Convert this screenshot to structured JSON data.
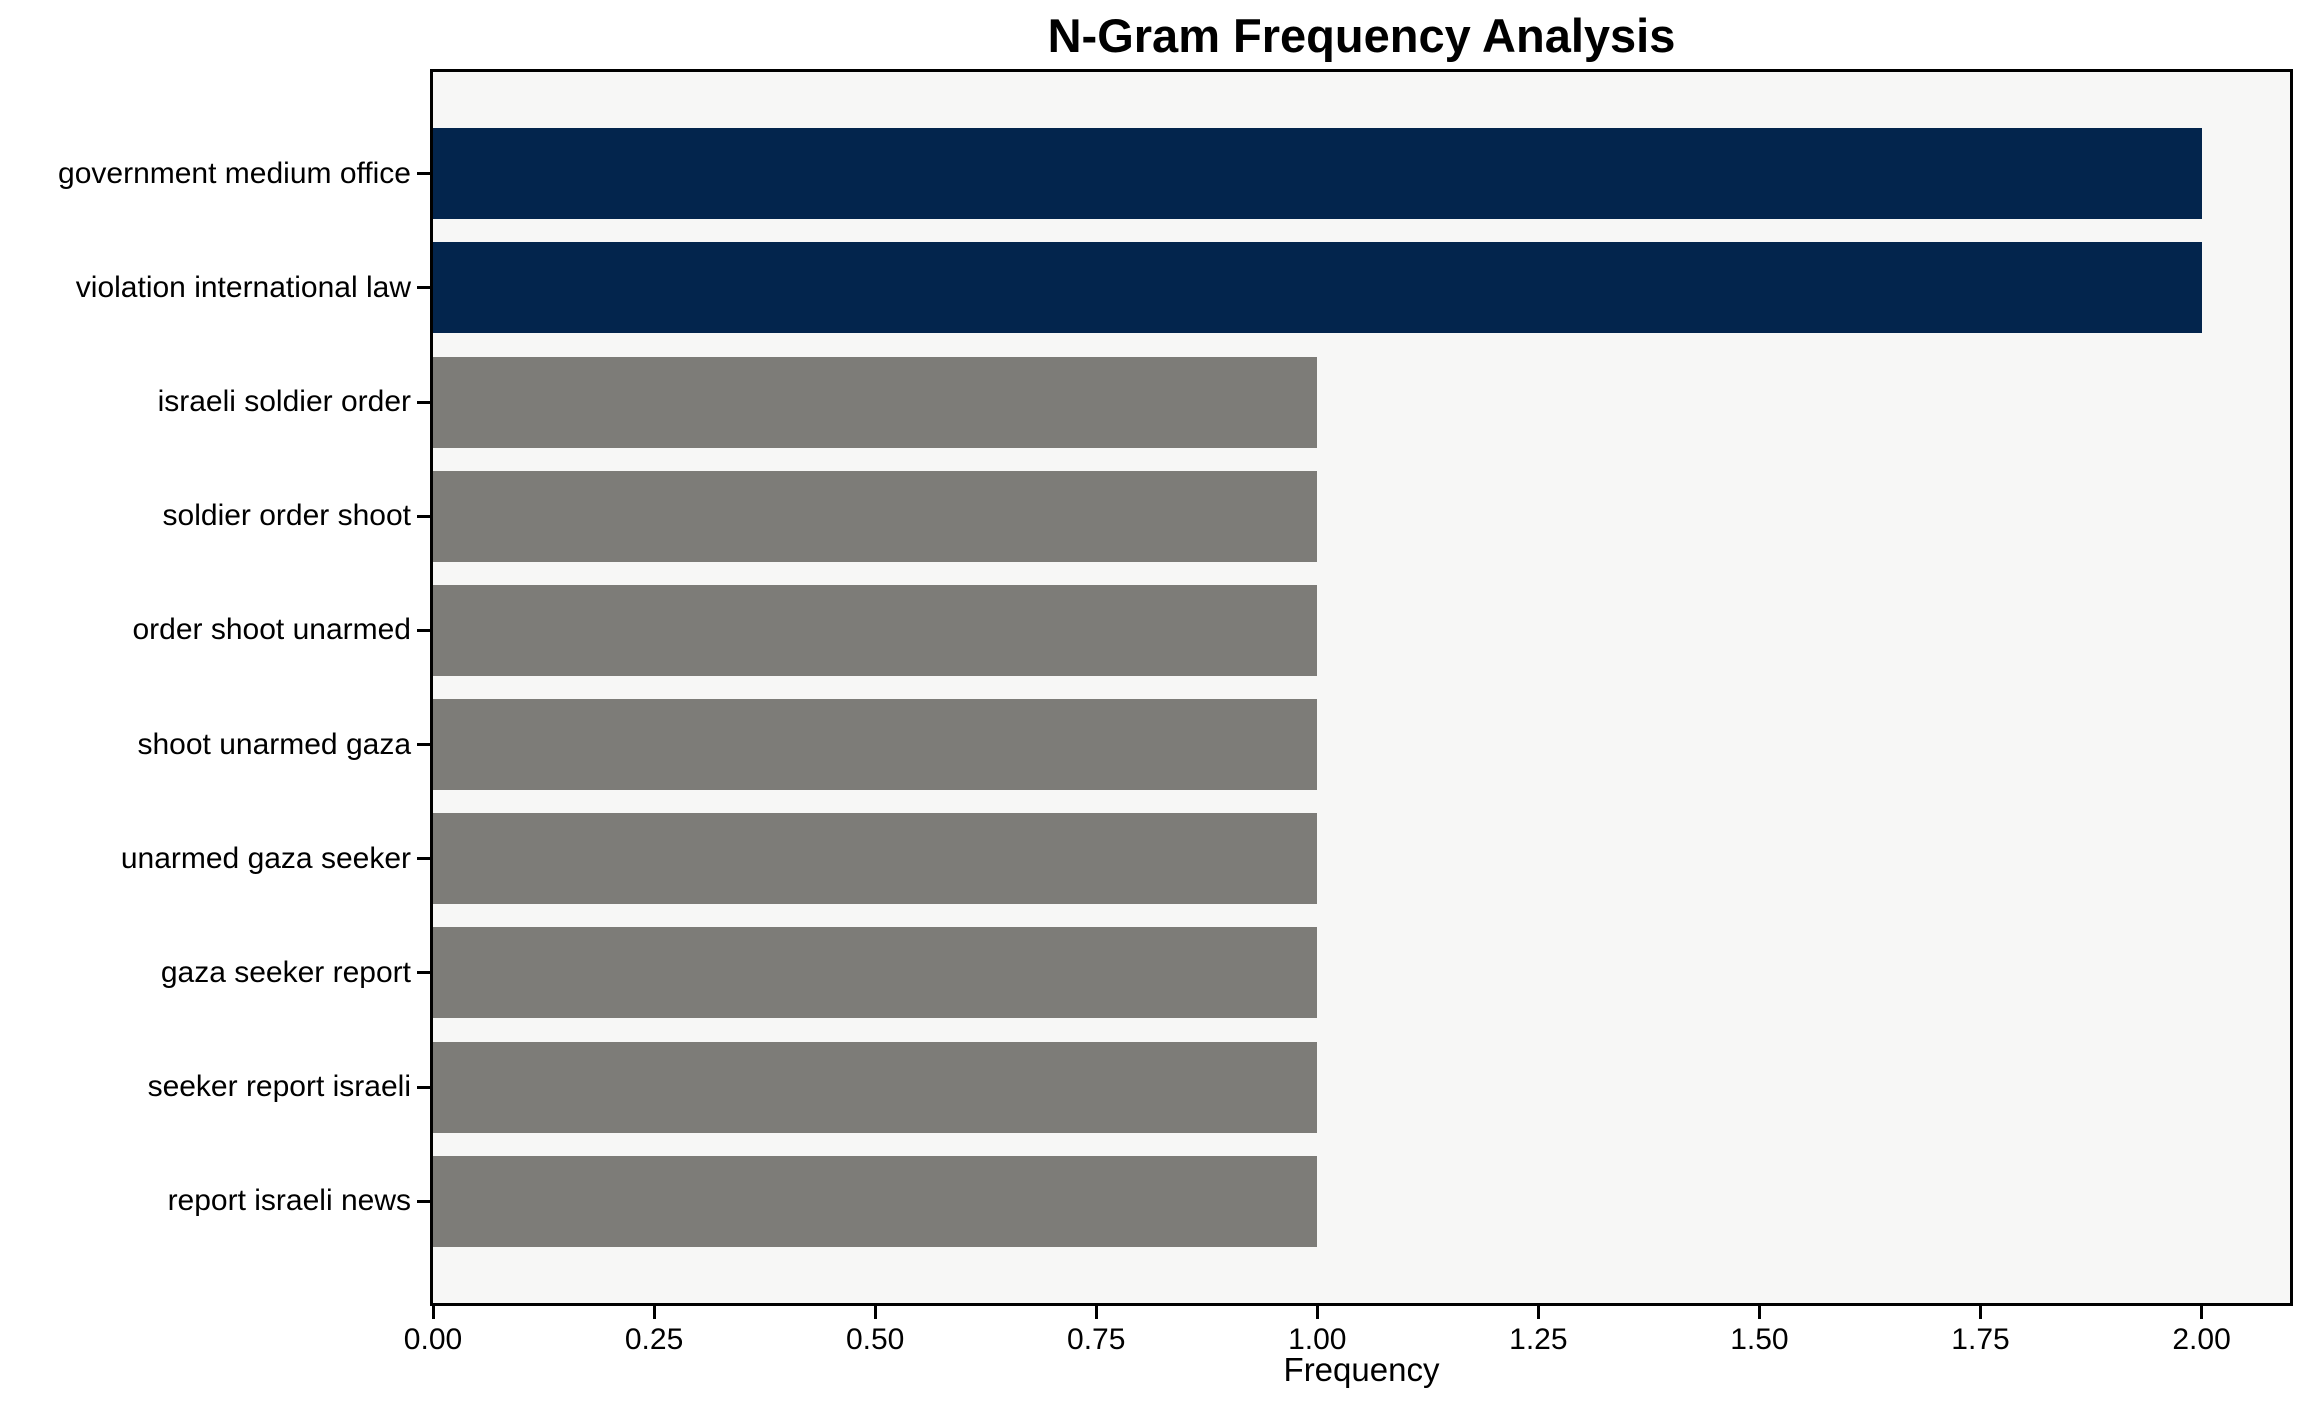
{
  "chart_data": {
    "type": "bar",
    "orientation": "horizontal",
    "title": "N-Gram Frequency Analysis",
    "xlabel": "Frequency",
    "ylabel": "",
    "categories": [
      "government medium office",
      "violation international law",
      "israeli soldier order",
      "soldier order shoot",
      "order shoot unarmed",
      "shoot unarmed gaza",
      "unarmed gaza seeker",
      "gaza seeker report",
      "seeker report israeli",
      "report israeli news"
    ],
    "values": [
      2,
      2,
      1,
      1,
      1,
      1,
      1,
      1,
      1,
      1
    ],
    "bar_colors": [
      "#03254d",
      "#03254d",
      "#7d7c78",
      "#7d7c78",
      "#7d7c78",
      "#7d7c78",
      "#7d7c78",
      "#7d7c78",
      "#7d7c78",
      "#7d7c78"
    ],
    "xlim": [
      0,
      2.1
    ],
    "xticks": [
      0.0,
      0.25,
      0.5,
      0.75,
      1.0,
      1.25,
      1.5,
      1.75,
      2.0
    ],
    "xtick_labels": [
      "0.00",
      "0.25",
      "0.50",
      "0.75",
      "1.00",
      "1.25",
      "1.50",
      "1.75",
      "2.00"
    ],
    "grid": false,
    "legend": false,
    "colors": {
      "highlight_bar": "#03254d",
      "default_bar": "#7d7c78",
      "plot_background": "#f7f7f6",
      "figure_background": "#ffffff",
      "spine": "#000000",
      "text": "#000000"
    }
  }
}
